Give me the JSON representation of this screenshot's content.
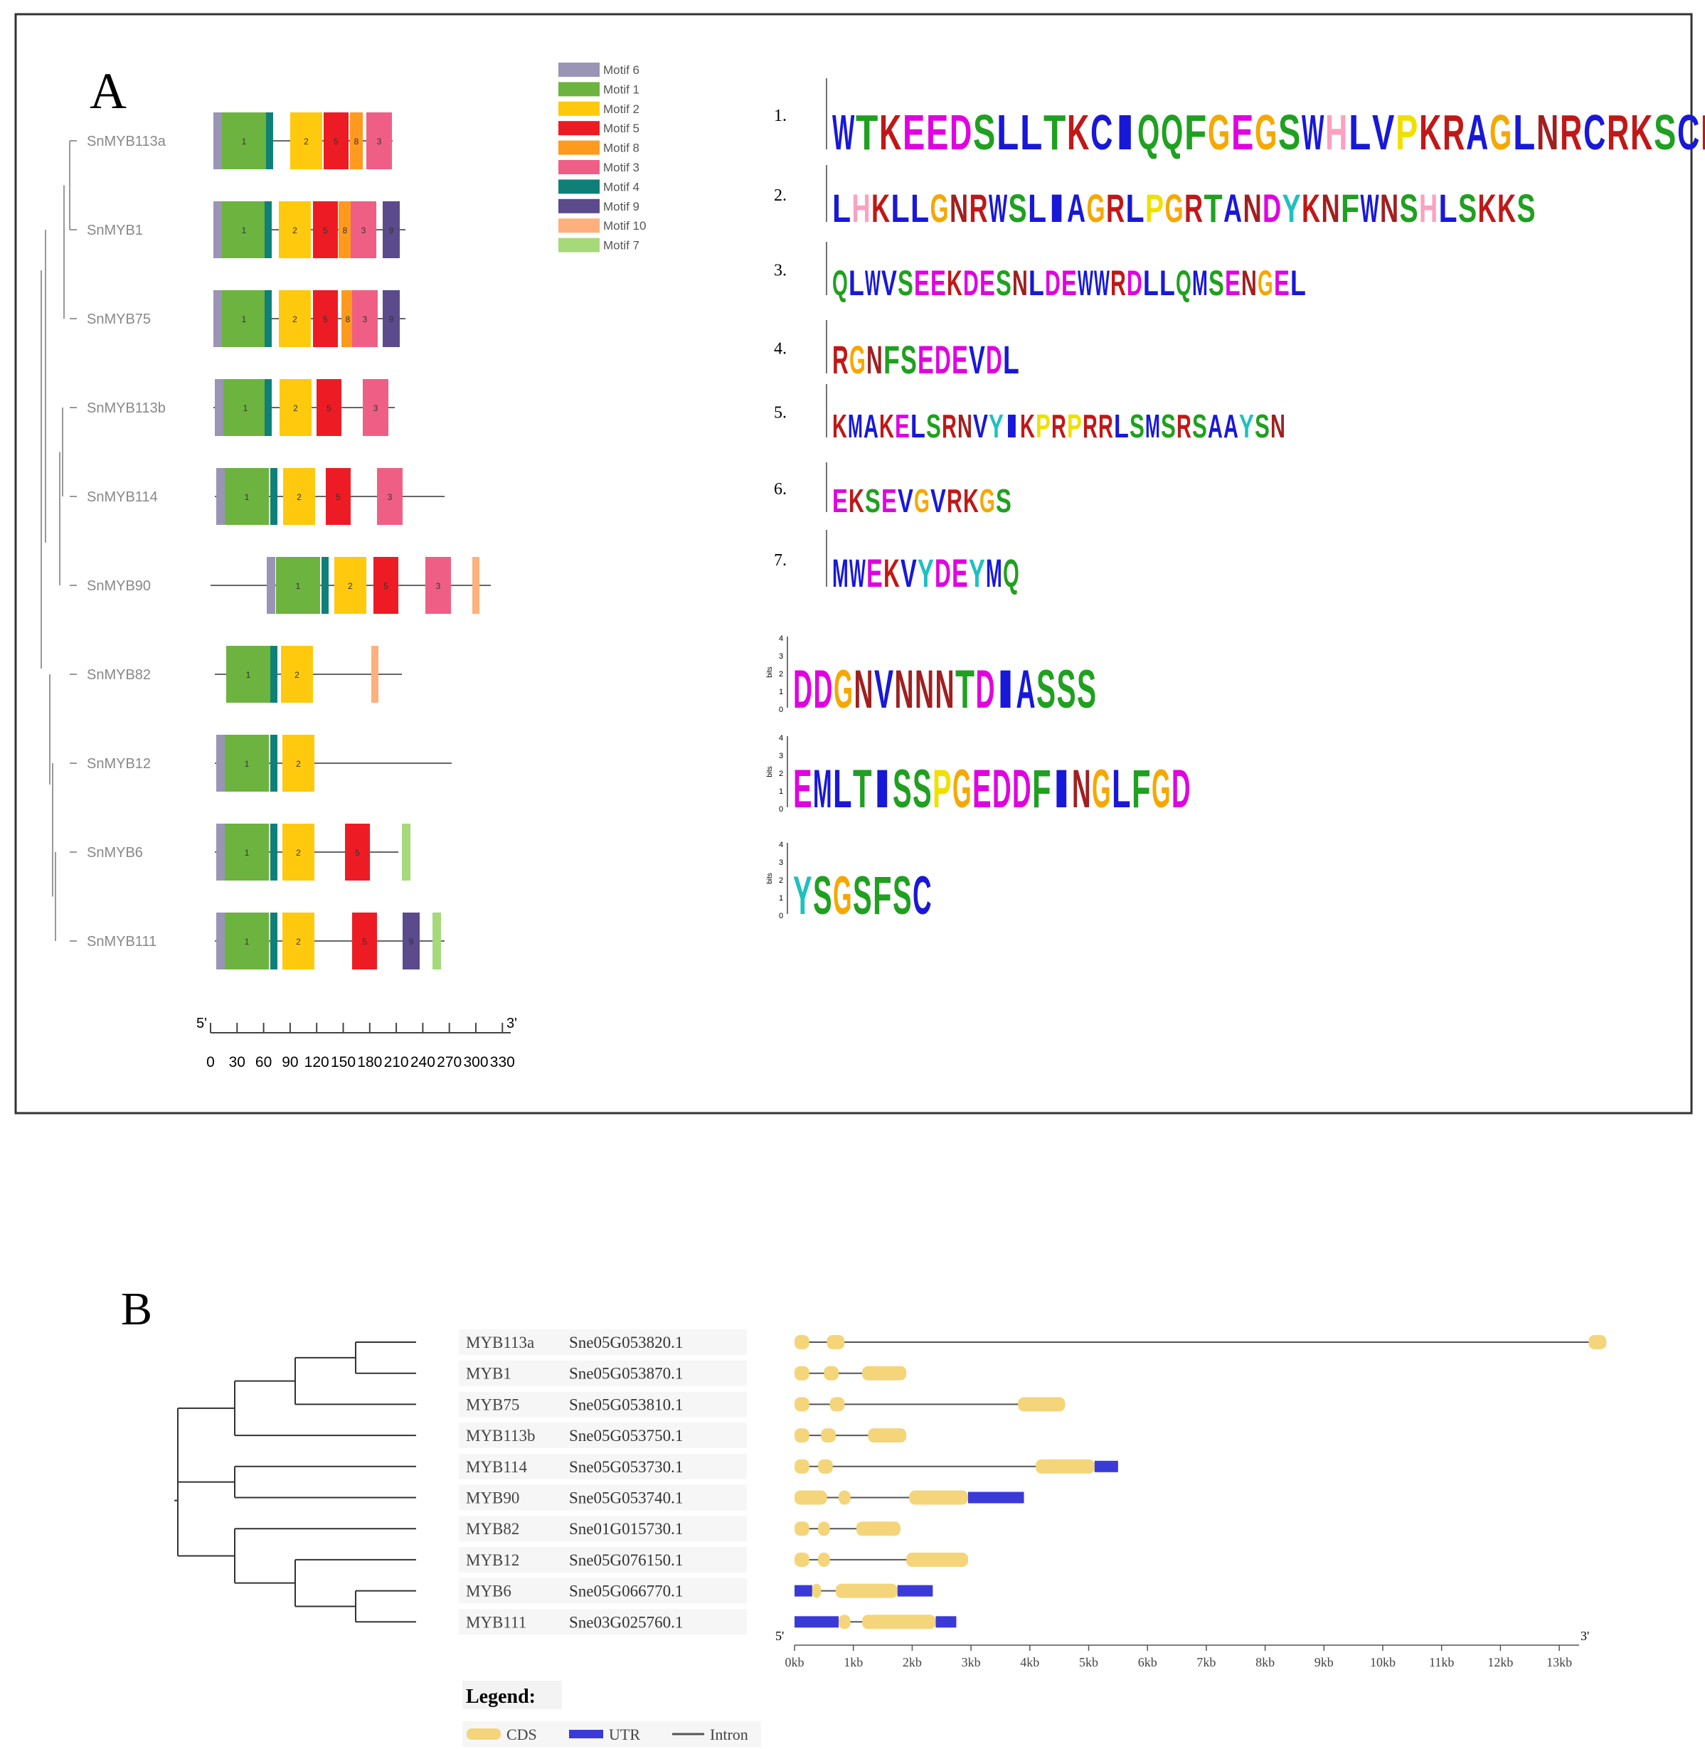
{
  "panelA": {
    "label": "A",
    "genes": [
      "SnMYB113a",
      "SnMYB1",
      "SnMYB75",
      "SnMYB113b",
      "SnMYB114",
      "SnMYB90",
      "SnMYB82",
      "SnMYB12",
      "SnMYB6",
      "SnMYB111"
    ],
    "legend": [
      {
        "name": "Motif 6",
        "color": "#9a94b5",
        "num": "6"
      },
      {
        "name": "Motif 1",
        "color": "#6db33f",
        "num": "1"
      },
      {
        "name": "Motif 2",
        "color": "#ffc90e",
        "num": "2"
      },
      {
        "name": "Motif 5",
        "color": "#ed1c24",
        "num": "5"
      },
      {
        "name": "Motif 8",
        "color": "#ff9a1f",
        "num": "8"
      },
      {
        "name": "Motif 3",
        "color": "#ef5f85",
        "num": "3"
      },
      {
        "name": "Motif 4",
        "color": "#0f8078",
        "num": "4"
      },
      {
        "name": "Motif 9",
        "color": "#5b4a8c",
        "num": "9"
      },
      {
        "name": "Motif 10",
        "color": "#ffb07c",
        "num": "10"
      },
      {
        "name": "Motif 7",
        "color": "#a6d97a",
        "num": "7"
      }
    ],
    "motif_rows": [
      [
        "6",
        "1",
        "4",
        "2",
        "5",
        "8",
        "3"
      ],
      [
        "6",
        "1",
        "4",
        "2",
        "5",
        "8",
        "3",
        "9"
      ],
      [
        "6",
        "1",
        "4",
        "2",
        "5",
        "8",
        "3",
        "9"
      ],
      [
        "6",
        "1",
        "4",
        "2",
        "5",
        "3"
      ],
      [
        "6",
        "1",
        "4",
        "2",
        "5",
        "3"
      ],
      [
        "6",
        "1",
        "4",
        "2",
        "5",
        "3",
        "10"
      ],
      [
        "1",
        "4",
        "2",
        "10"
      ],
      [
        "6",
        "1",
        "4",
        "2"
      ],
      [
        "6",
        "1",
        "4",
        "2",
        "5",
        "7"
      ],
      [
        "6",
        "1",
        "4",
        "2",
        "5",
        "9",
        "7"
      ]
    ],
    "scale": {
      "five_prime": "5'",
      "three_prime": "3'",
      "ticks": [
        "0",
        "30",
        "60",
        "90",
        "120",
        "150",
        "180",
        "210",
        "240",
        "270",
        "300",
        "330"
      ]
    },
    "logo_numbers": [
      "1.",
      "2.",
      "3.",
      "4.",
      "5.",
      "6.",
      "7."
    ],
    "logos": [
      "WTKEEDSLLTKCIQQFGEGSWHLVPKRAGLNRCRKSCRLRWLNYLRPNLK",
      "LHKLLGNRWSLIAGRLPGRTANDYKNFWNSHLSKKS",
      "QLWVSEEKDESNLDEWWRDLLQMSENGEL",
      "RGNFSEDEVDL",
      "KMAKELSRNVYIKPRPRRLSMSRSAAYSN",
      "EKSEVGVRKGS",
      "MWEKVYDEYMQ",
      "DDGNVNNNTDIASSS",
      "EMLTISSPGEDDFINGLFGD",
      "YSGSFSC"
    ],
    "logo_axis": {
      "unit": "bits",
      "ticks": [
        "4",
        "3",
        "2",
        "1",
        "0"
      ]
    }
  },
  "panelB": {
    "label": "B",
    "genes": [
      {
        "name": "MYB113a",
        "id": "Sne05G053820.1"
      },
      {
        "name": "MYB1",
        "id": "Sne05G053870.1"
      },
      {
        "name": "MYB75",
        "id": "Sne05G053810.1"
      },
      {
        "name": "MYB113b",
        "id": "Sne05G053750.1"
      },
      {
        "name": "MYB114",
        "id": "Sne05G053730.1"
      },
      {
        "name": "MYB90",
        "id": "Sne05G053740.1"
      },
      {
        "name": "MYB82",
        "id": "Sne01G015730.1"
      },
      {
        "name": "MYB12",
        "id": "Sne05G076150.1"
      },
      {
        "name": "MYB6",
        "id": "Sne05G066770.1"
      },
      {
        "name": "MYB111",
        "id": "Sne03G025760.1"
      }
    ],
    "structures": [
      {
        "len": 13.8,
        "cds": [
          [
            0,
            0.25
          ],
          [
            0.55,
            0.85
          ],
          [
            13.5,
            13.8
          ]
        ],
        "utr": []
      },
      {
        "len": 1.9,
        "cds": [
          [
            0,
            0.25
          ],
          [
            0.5,
            0.75
          ],
          [
            1.15,
            1.9
          ]
        ],
        "utr": []
      },
      {
        "len": 4.6,
        "cds": [
          [
            0,
            0.25
          ],
          [
            0.6,
            0.85
          ],
          [
            3.8,
            4.6
          ]
        ],
        "utr": []
      },
      {
        "len": 1.9,
        "cds": [
          [
            0,
            0.25
          ],
          [
            0.45,
            0.7
          ],
          [
            1.25,
            1.9
          ]
        ],
        "utr": []
      },
      {
        "len": 5.5,
        "cds": [
          [
            0,
            0.25
          ],
          [
            0.4,
            0.65
          ],
          [
            4.1,
            5.1
          ]
        ],
        "utr": [
          [
            5.1,
            5.5
          ]
        ]
      },
      {
        "len": 3.9,
        "cds": [
          [
            0,
            0.55
          ],
          [
            0.75,
            0.95
          ],
          [
            1.95,
            2.95
          ]
        ],
        "utr": [
          [
            2.95,
            3.9
          ]
        ]
      },
      {
        "len": 1.8,
        "cds": [
          [
            0,
            0.25
          ],
          [
            0.4,
            0.6
          ],
          [
            1.05,
            1.8
          ]
        ],
        "utr": []
      },
      {
        "len": 2.95,
        "cds": [
          [
            0,
            0.25
          ],
          [
            0.4,
            0.6
          ],
          [
            1.9,
            2.95
          ]
        ],
        "utr": []
      },
      {
        "len": 2.35,
        "cds": [
          [
            0.3,
            0.45
          ],
          [
            0.7,
            1.75
          ]
        ],
        "utr": [
          [
            0,
            0.3
          ],
          [
            1.75,
            2.35
          ]
        ]
      },
      {
        "len": 2.75,
        "cds": [
          [
            0.75,
            0.95
          ],
          [
            1.15,
            2.4
          ]
        ],
        "utr": [
          [
            0,
            0.75
          ],
          [
            2.4,
            2.75
          ]
        ]
      }
    ],
    "axis": {
      "five_prime": "5'",
      "three_prime": "3'",
      "ticks": [
        "0kb",
        "1kb",
        "2kb",
        "3kb",
        "4kb",
        "5kb",
        "6kb",
        "7kb",
        "8kb",
        "9kb",
        "10kb",
        "11kb",
        "12kb",
        "13kb"
      ]
    },
    "legend": {
      "title": "Legend:",
      "cds": "CDS",
      "utr": "UTR",
      "intron": "Intron",
      "cds_color": "#f4d57a",
      "utr_color": "#3a3ad8",
      "intron_color": "#555555"
    }
  }
}
